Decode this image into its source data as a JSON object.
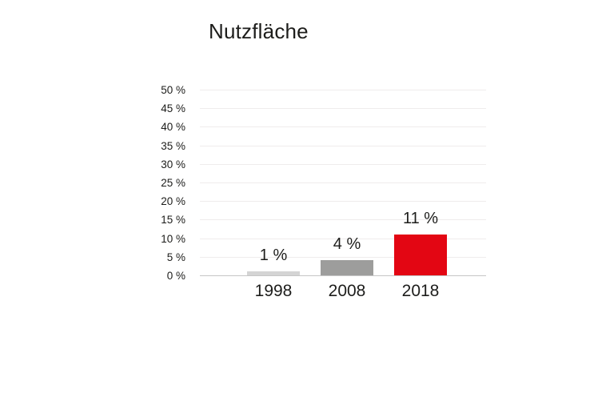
{
  "title": "Nutzfläche",
  "chart_data": {
    "type": "bar",
    "title": "Nutzfläche",
    "categories": [
      "1998",
      "2008",
      "2018"
    ],
    "values": [
      1,
      4,
      11
    ],
    "value_labels": [
      "1 %",
      "4 %",
      "11 %"
    ],
    "bar_colors": [
      "#d4d4d4",
      "#9d9d9c",
      "#e30613"
    ],
    "xlabel": "",
    "ylabel": "",
    "ylim": [
      0,
      50
    ],
    "ytick_step": 5,
    "ytick_labels": [
      "0 %",
      "5 %",
      "10 %",
      "15 %",
      "20 %",
      "25 %",
      "30 %",
      "35 %",
      "40 %",
      "45 %",
      "50 %"
    ],
    "grid": true,
    "legend": "none",
    "colors": {
      "text": "#1d1d1b",
      "gridline": "#efecec",
      "axis_line": "#c6c6c6",
      "background": "#ffffff"
    }
  }
}
